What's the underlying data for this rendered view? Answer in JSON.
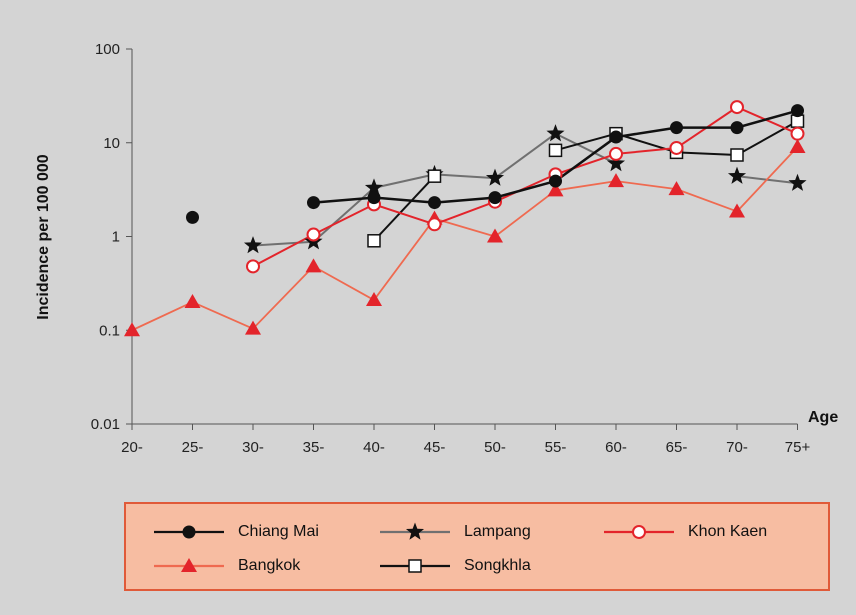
{
  "chart_data": {
    "type": "line",
    "title": "",
    "xlabel": "Age",
    "ylabel": "Incidence per 100 000",
    "yscale": "log",
    "ylim": [
      0.01,
      100
    ],
    "yticks": [
      "100",
      "10",
      "1",
      "0.1",
      "0.01"
    ],
    "ytick_values": [
      100,
      10,
      1,
      0.1,
      0.01
    ],
    "categories": [
      "20-",
      "25-",
      "30-",
      "35-",
      "40-",
      "45-",
      "50-",
      "55-",
      "60-",
      "65-",
      "70-",
      "75+"
    ],
    "grid": false,
    "legend_position": "bottom",
    "series": [
      {
        "name": "Chiang Mai",
        "color": "#111111",
        "marker": "filled-circle",
        "values": [
          null,
          1.6,
          null,
          2.3,
          2.6,
          2.3,
          2.6,
          3.9,
          11.5,
          14.5,
          14.5,
          22
        ]
      },
      {
        "name": "Lampang",
        "color": "#707070",
        "marker": "star",
        "values": [
          null,
          null,
          0.8,
          0.88,
          3.3,
          4.6,
          4.2,
          12.5,
          6.0,
          null,
          4.4,
          3.7
        ]
      },
      {
        "name": "Khon Kaen",
        "color": "#e3242b",
        "marker": "open-circle",
        "values": [
          null,
          null,
          0.48,
          1.05,
          2.2,
          1.35,
          2.35,
          4.6,
          7.6,
          8.8,
          24,
          12.5
        ]
      },
      {
        "name": "Bangkok",
        "color": "#ef6a50",
        "marker": "filled-triangle",
        "values": [
          0.1,
          0.2,
          0.104,
          0.48,
          0.21,
          1.55,
          1.0,
          3.1,
          3.9,
          3.2,
          1.85,
          9.0
        ]
      },
      {
        "name": "Songkhla",
        "color": "#111111",
        "marker": "open-square",
        "values": [
          null,
          null,
          null,
          null,
          0.9,
          4.4,
          null,
          8.3,
          12.5,
          7.9,
          7.4,
          17
        ]
      }
    ]
  }
}
